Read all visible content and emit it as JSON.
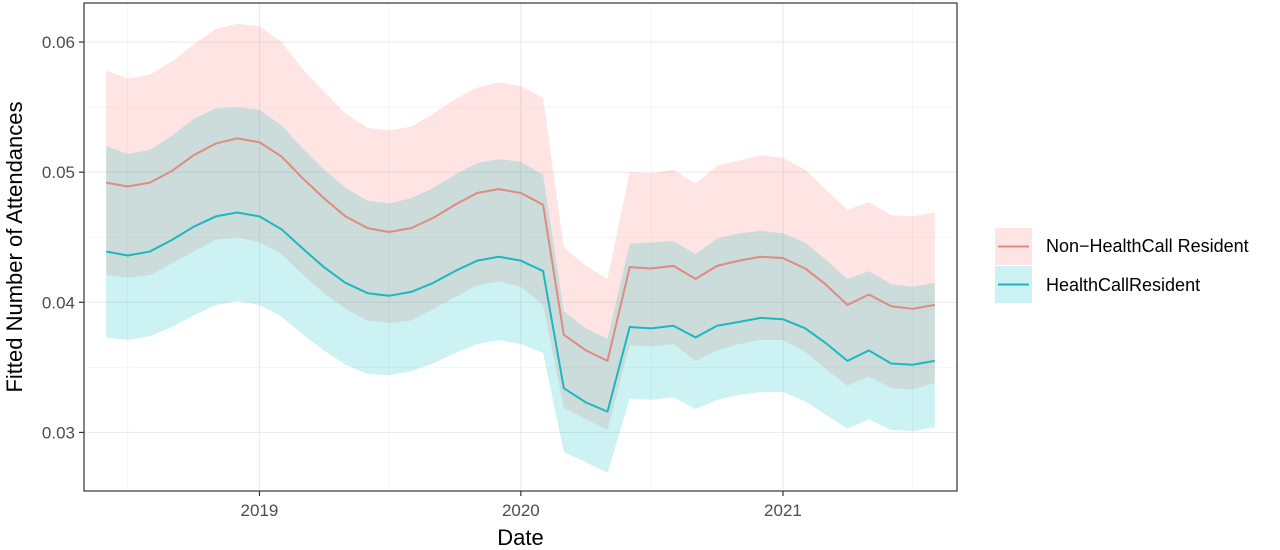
{
  "chart_data": {
    "type": "line",
    "xlabel": "Date",
    "ylabel": "Fitted Number of Attendances",
    "xlim": [
      "2018-05-01",
      "2021-09-01"
    ],
    "ylim": [
      0.0255,
      0.063
    ],
    "x_ticks": [
      {
        "label": "2019",
        "date": "2019-01-01"
      },
      {
        "label": "2020",
        "date": "2020-01-01"
      },
      {
        "label": "2021",
        "date": "2021-01-01"
      }
    ],
    "y_ticks": [
      {
        "label": "0.03",
        "value": 0.03
      },
      {
        "label": "0.04",
        "value": 0.04
      },
      {
        "label": "0.05",
        "value": 0.05
      },
      {
        "label": "0.06",
        "value": 0.06
      }
    ],
    "grid": true,
    "legend_position": "right",
    "x": [
      "2018-06-01",
      "2018-07-01",
      "2018-08-01",
      "2018-09-01",
      "2018-10-01",
      "2018-11-01",
      "2018-12-01",
      "2019-01-01",
      "2019-02-01",
      "2019-03-01",
      "2019-04-01",
      "2019-05-01",
      "2019-06-01",
      "2019-07-01",
      "2019-08-01",
      "2019-09-01",
      "2019-10-01",
      "2019-11-01",
      "2019-12-01",
      "2020-01-01",
      "2020-02-01",
      "2020-03-01",
      "2020-04-01",
      "2020-05-01",
      "2020-06-01",
      "2020-07-01",
      "2020-08-01",
      "2020-09-01",
      "2020-10-01",
      "2020-11-01",
      "2020-12-01",
      "2021-01-01",
      "2021-02-01",
      "2021-03-01",
      "2021-04-01",
      "2021-05-01",
      "2021-06-01",
      "2021-07-01",
      "2021-08-01"
    ],
    "series": [
      {
        "name": "Non−HealthCall Resident",
        "color": "#E08A80",
        "fill_color": "#F8766D",
        "values": [
          0.0492,
          0.0489,
          0.0492,
          0.0501,
          0.0513,
          0.0522,
          0.0526,
          0.0523,
          0.0512,
          0.0496,
          0.048,
          0.0466,
          0.0457,
          0.0454,
          0.0457,
          0.0465,
          0.0475,
          0.0484,
          0.0487,
          0.0484,
          0.0475,
          0.0375,
          0.0363,
          0.0355,
          0.0427,
          0.0426,
          0.0428,
          0.0418,
          0.0428,
          0.0432,
          0.0435,
          0.0434,
          0.0426,
          0.0414,
          0.0398,
          0.0406,
          0.0397,
          0.0395,
          0.0398
        ],
        "lower": [
          0.0421,
          0.0419,
          0.0421,
          0.043,
          0.0439,
          0.0448,
          0.045,
          0.0446,
          0.0437,
          0.0422,
          0.0407,
          0.0395,
          0.0386,
          0.0384,
          0.0386,
          0.0395,
          0.0404,
          0.0413,
          0.0416,
          0.0412,
          0.0398,
          0.0319,
          0.031,
          0.0302,
          0.0367,
          0.0366,
          0.0368,
          0.0355,
          0.0363,
          0.0368,
          0.0371,
          0.0371,
          0.0362,
          0.0349,
          0.0336,
          0.0343,
          0.0334,
          0.0333,
          0.0338
        ],
        "upper": [
          0.0578,
          0.0572,
          0.0575,
          0.0585,
          0.0598,
          0.061,
          0.0614,
          0.0612,
          0.06,
          0.058,
          0.0562,
          0.0545,
          0.0534,
          0.0532,
          0.0535,
          0.0545,
          0.0556,
          0.0565,
          0.0569,
          0.0566,
          0.0557,
          0.0442,
          0.0428,
          0.0418,
          0.05,
          0.0499,
          0.0502,
          0.0491,
          0.0505,
          0.0509,
          0.0513,
          0.0511,
          0.0502,
          0.0487,
          0.0471,
          0.0477,
          0.0467,
          0.0466,
          0.0469
        ]
      },
      {
        "name": "HealthCallResident",
        "color": "#1CB8C0",
        "fill_color": "#00BFC4",
        "values": [
          0.0439,
          0.0436,
          0.0439,
          0.0448,
          0.0458,
          0.0466,
          0.0469,
          0.0466,
          0.0456,
          0.0442,
          0.0427,
          0.0415,
          0.0407,
          0.0405,
          0.0408,
          0.0415,
          0.0424,
          0.0432,
          0.0435,
          0.0432,
          0.0424,
          0.0334,
          0.0323,
          0.0316,
          0.0381,
          0.038,
          0.0382,
          0.0373,
          0.0382,
          0.0385,
          0.0388,
          0.0387,
          0.038,
          0.0369,
          0.0355,
          0.0363,
          0.0353,
          0.0352,
          0.0355
        ],
        "lower": [
          0.0373,
          0.0371,
          0.0374,
          0.0381,
          0.039,
          0.0398,
          0.0401,
          0.0398,
          0.0389,
          0.0376,
          0.0363,
          0.0352,
          0.0345,
          0.0344,
          0.0347,
          0.0353,
          0.0361,
          0.0368,
          0.0371,
          0.0368,
          0.0361,
          0.0285,
          0.0277,
          0.0269,
          0.0326,
          0.0325,
          0.0327,
          0.0318,
          0.0325,
          0.0329,
          0.0331,
          0.0331,
          0.0324,
          0.0314,
          0.0303,
          0.031,
          0.0302,
          0.0301,
          0.0304
        ],
        "upper": [
          0.052,
          0.0514,
          0.0517,
          0.0528,
          0.0541,
          0.0549,
          0.055,
          0.0548,
          0.0536,
          0.0519,
          0.0502,
          0.0488,
          0.0478,
          0.0476,
          0.048,
          0.0488,
          0.0498,
          0.0507,
          0.051,
          0.0508,
          0.0498,
          0.0393,
          0.038,
          0.0372,
          0.0445,
          0.0446,
          0.0447,
          0.0437,
          0.0449,
          0.0453,
          0.0455,
          0.0453,
          0.0446,
          0.0433,
          0.0418,
          0.0424,
          0.0414,
          0.0412,
          0.0415
        ]
      }
    ]
  }
}
